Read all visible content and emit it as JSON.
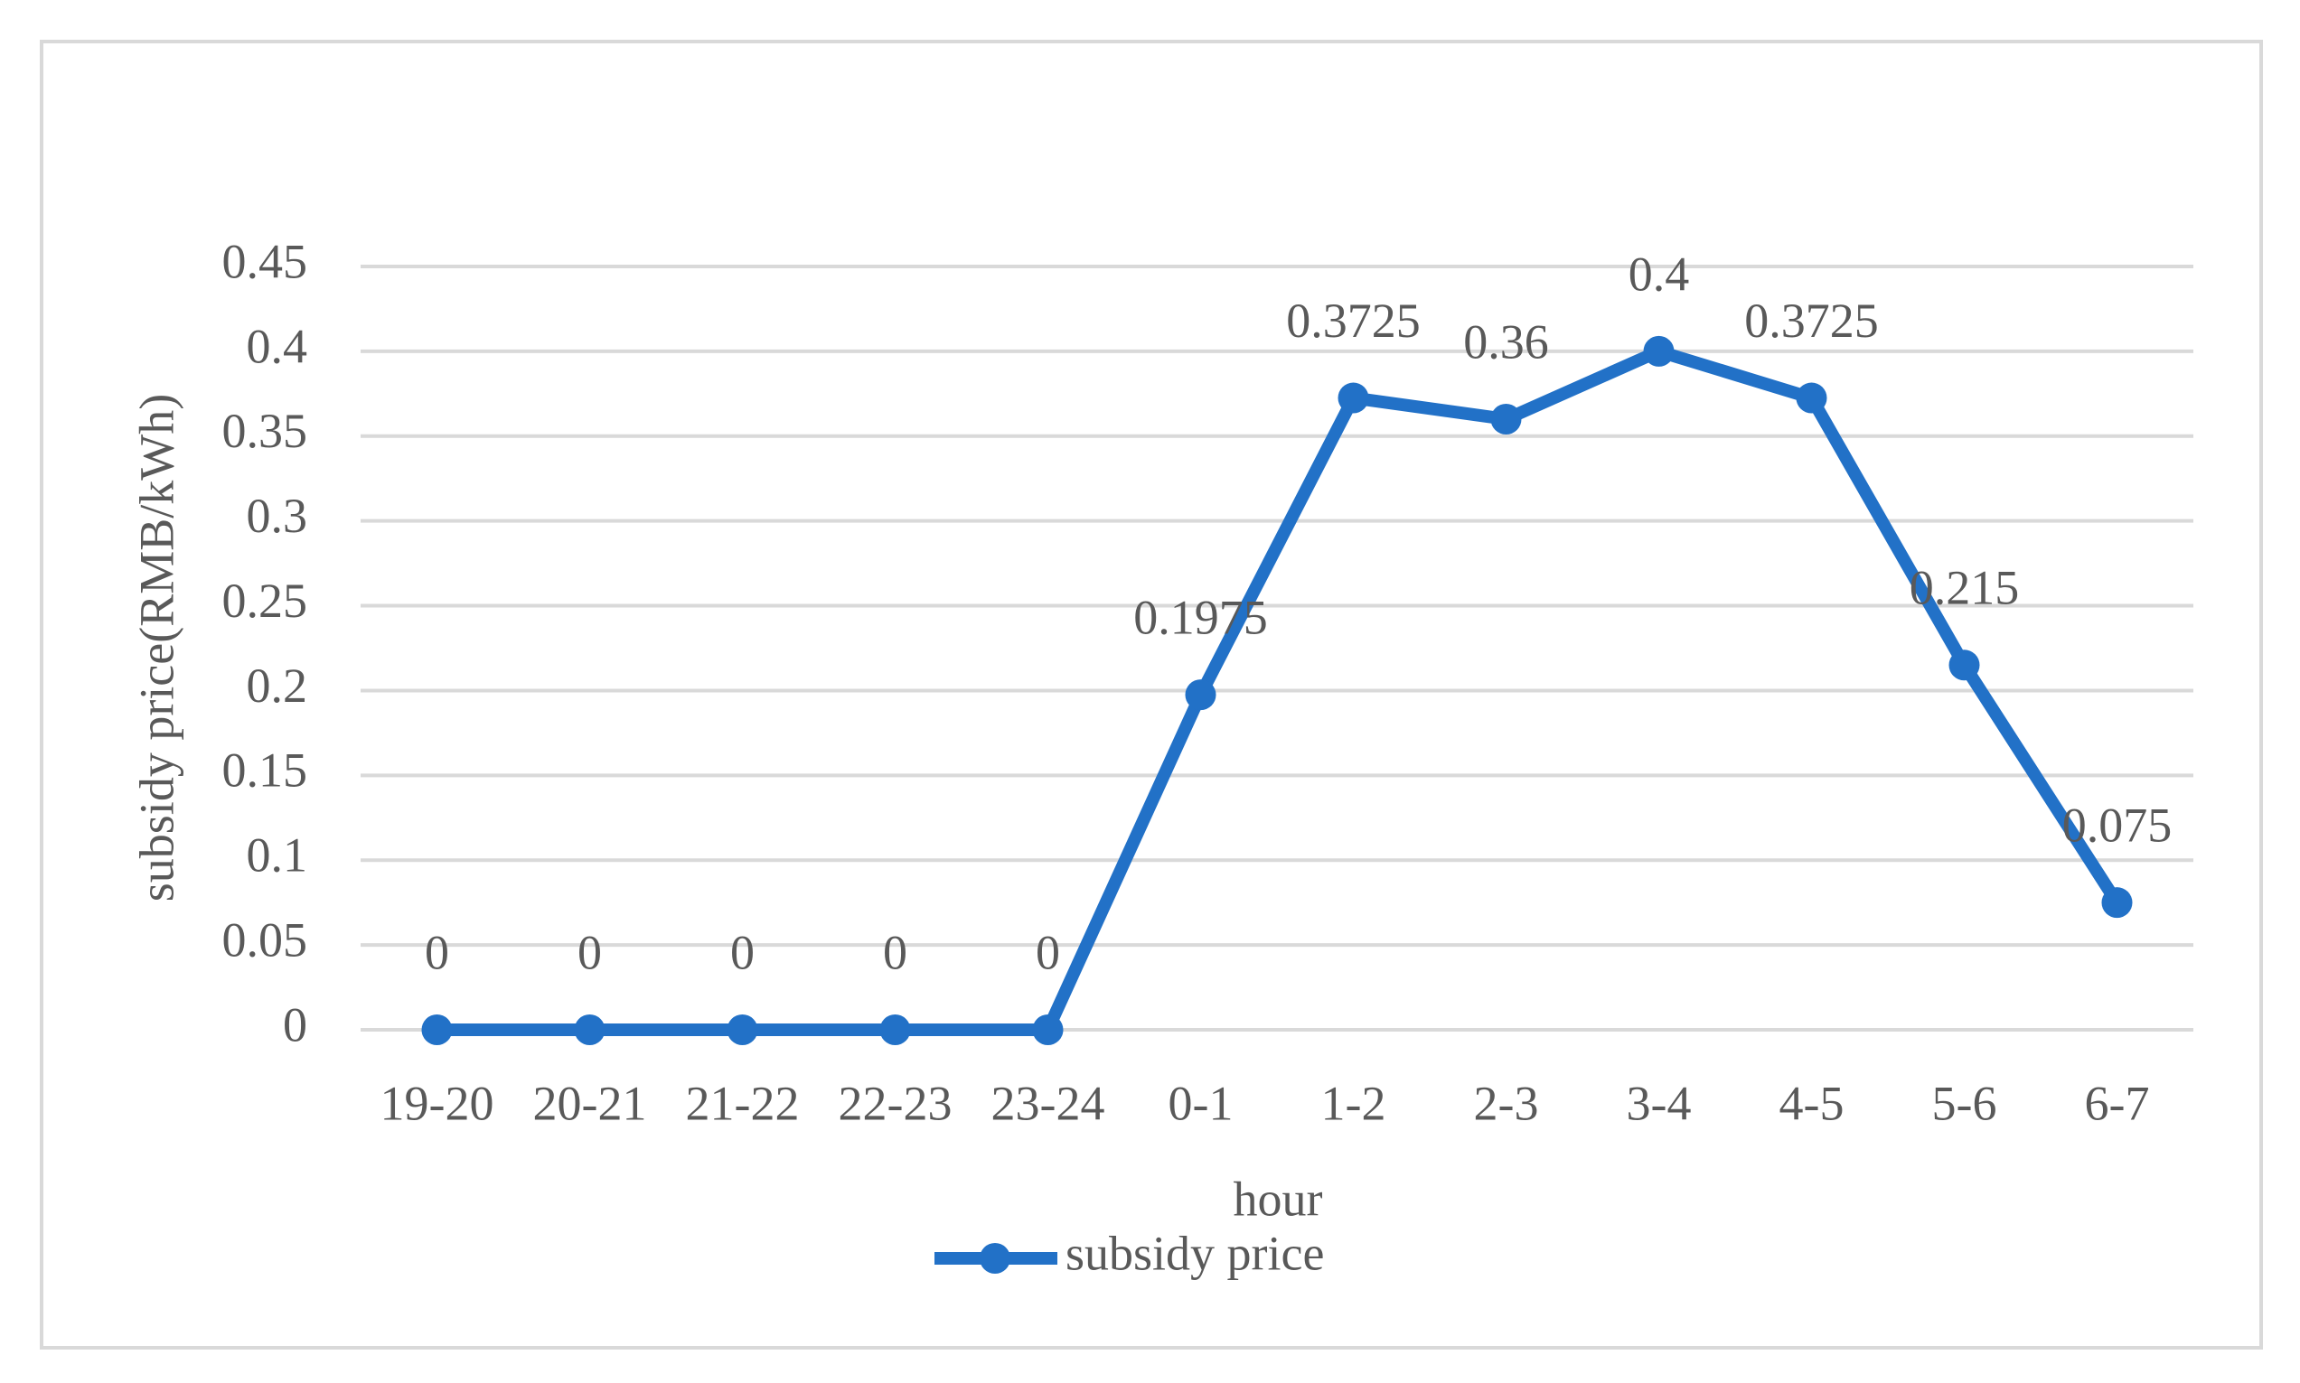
{
  "chart_data": {
    "type": "line",
    "x_label": "hour",
    "y_label": "subsidy price(RMB/kWh)",
    "categories": [
      "19-20",
      "20-21",
      "21-22",
      "22-23",
      "23-24",
      "0-1",
      "1-2",
      "2-3",
      "3-4",
      "4-5",
      "5-6",
      "6-7"
    ],
    "series": [
      {
        "name": "subsidy price",
        "color": "#2271c7",
        "values": [
          0,
          0,
          0,
          0,
          0,
          0.1975,
          0.3725,
          0.36,
          0.4,
          0.3725,
          0.215,
          0.075
        ]
      }
    ],
    "ylim": [
      0,
      0.45
    ],
    "yticks": [
      0,
      0.05,
      0.1,
      0.15,
      0.2,
      0.25,
      0.3,
      0.35,
      0.4,
      0.45
    ],
    "grid": true,
    "legend": "bottom"
  }
}
